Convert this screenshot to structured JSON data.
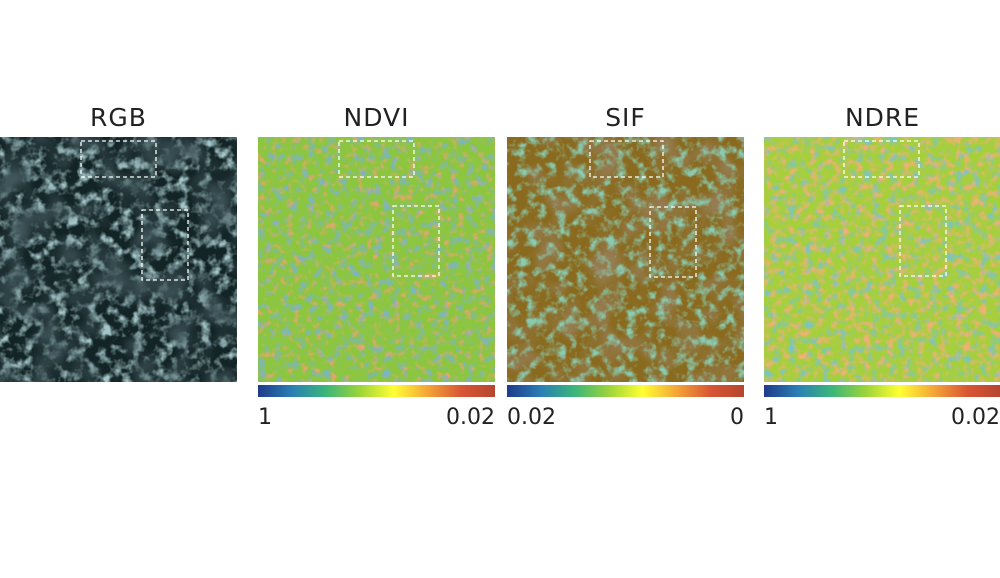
{
  "panels": [
    {
      "title": "RGB"
    },
    {
      "title": "NDVI",
      "colorbar": {
        "min_label": "1",
        "max_label": "0.02"
      }
    },
    {
      "title": "SIF",
      "colorbar": {
        "min_label": "0.02",
        "max_label": "0"
      }
    },
    {
      "title": "NDRE",
      "colorbar": {
        "min_label": "1",
        "max_label": "0.02"
      }
    }
  ],
  "colormap": [
    "#1f3b8a",
    "#2a7fb5",
    "#3bb57a",
    "#9bd43a",
    "#ffff33",
    "#f4a637",
    "#d95535",
    "#b5452f"
  ],
  "colors": {
    "rgb_dark": "#0e1a1c",
    "rgb_foliage": "#5f8f95",
    "sif_dark": "#3a2a14",
    "marker_box": "#ffffff"
  }
}
